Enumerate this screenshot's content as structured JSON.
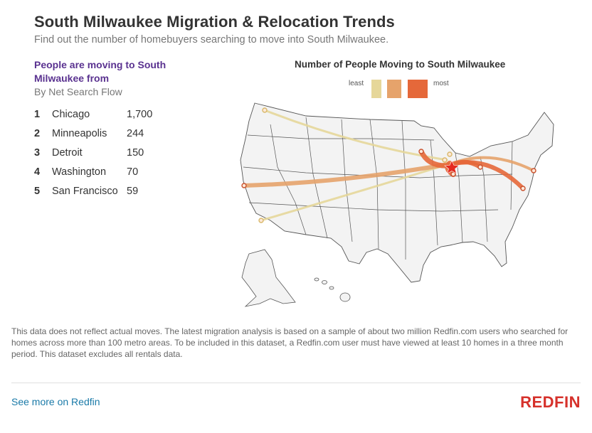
{
  "header": {
    "title": "South Milwaukee Migration & Relocation Trends",
    "subtitle": "Find out the number of homebuyers searching to move into South Milwaukee."
  },
  "ranking": {
    "heading": "People are moving to South Milwaukee from",
    "subheading": "By Net Search Flow",
    "items": [
      {
        "rank": "1",
        "city": "Chicago",
        "value": "1,700"
      },
      {
        "rank": "2",
        "city": "Minneapolis",
        "value": "244"
      },
      {
        "rank": "3",
        "city": "Detroit",
        "value": "150"
      },
      {
        "rank": "4",
        "city": "Washington",
        "value": "70"
      },
      {
        "rank": "5",
        "city": "San Francisco",
        "value": "59"
      }
    ]
  },
  "map": {
    "title": "Number of People Moving to South Milwaukee",
    "legend": {
      "least_label": "least",
      "most_label": "most",
      "colors": [
        "#e6d79a",
        "#e6a36b",
        "#e5683a"
      ]
    },
    "destination_marker_color": "#e52a1f",
    "origin_marker_fill": "#fde8d8"
  },
  "footer": {
    "note": "This data does not reflect actual moves. The latest migration analysis is based on a sample of about two million Redfin.com users who searched for homes across more than 100 metro areas. To be included in this dataset, a Redfin.com user must have viewed at least 10 homes in a three month period. This dataset excludes all rentals data.",
    "link_label": "See more on Redfin",
    "brand": "REDFIN"
  }
}
